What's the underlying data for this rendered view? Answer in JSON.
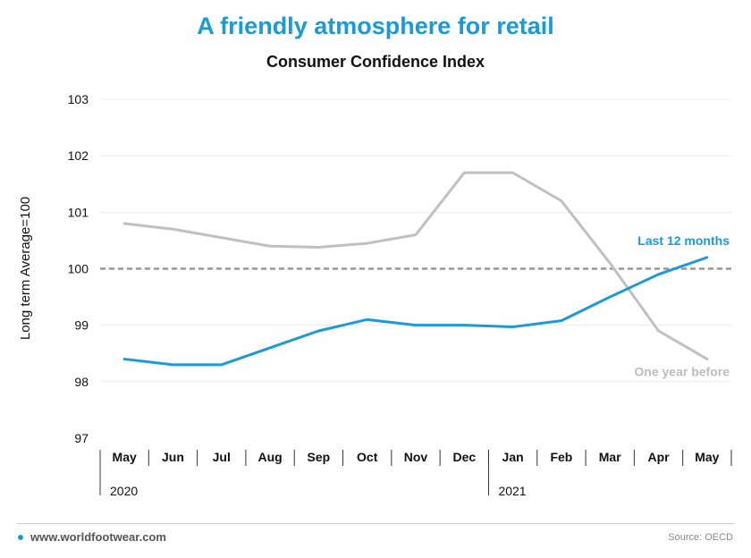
{
  "chart_data": {
    "type": "line",
    "title": "A friendly atmosphere for retail",
    "subtitle": "Consumer Confidence Index",
    "ylabel": "Long term Average=100",
    "ylim": [
      97,
      103
    ],
    "yticks": [
      97,
      98,
      99,
      100,
      101,
      102,
      103
    ],
    "categories": [
      "May",
      "Jun",
      "Jul",
      "Aug",
      "Sep",
      "Oct",
      "Nov",
      "Dec",
      "Jan",
      "Feb",
      "Mar",
      "Apr",
      "May"
    ],
    "year_groups": [
      {
        "label": "2020",
        "start_index": 0
      },
      {
        "label": "2021",
        "start_index": 8
      }
    ],
    "reference_line": {
      "value": 100,
      "style": "dashed",
      "color": "#999999"
    },
    "grid": true,
    "series": [
      {
        "name": "One year before",
        "color": "#c0c0c0",
        "values": [
          100.8,
          100.7,
          100.55,
          100.4,
          100.38,
          100.45,
          100.6,
          101.7,
          101.7,
          101.2,
          100.1,
          98.9,
          98.4
        ]
      },
      {
        "name": "Last 12 months",
        "color": "#1a9ad6",
        "values": [
          98.4,
          98.3,
          98.3,
          98.6,
          98.9,
          99.1,
          99.0,
          99.0,
          98.97,
          99.08,
          99.5,
          99.9,
          100.2
        ]
      }
    ]
  },
  "footer": {
    "site": "www.worldfootwear.com",
    "source": "Source: OECD"
  }
}
